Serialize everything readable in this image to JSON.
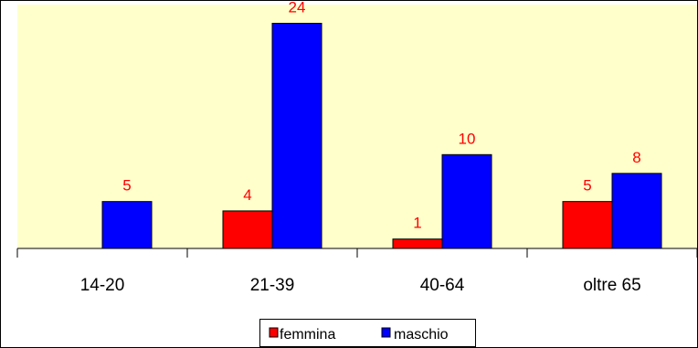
{
  "chart_data": {
    "type": "bar",
    "categories": [
      "14-20",
      "21-39",
      "40-64",
      "oltre 65"
    ],
    "series": [
      {
        "name": "femmina",
        "values": [
          null,
          4,
          1,
          5
        ],
        "color": "#ff0000"
      },
      {
        "name": "maschio",
        "values": [
          5,
          24,
          10,
          8
        ],
        "color": "#0000ff"
      }
    ],
    "data_labels": [
      [
        "",
        "4",
        "1",
        "5"
      ],
      [
        "5",
        "24",
        "10",
        "8"
      ]
    ],
    "ylim": [
      0,
      26
    ],
    "grid": false,
    "legend_position": "bottom",
    "plot_background": "#ffffcc",
    "label_color": "#ff0000"
  }
}
